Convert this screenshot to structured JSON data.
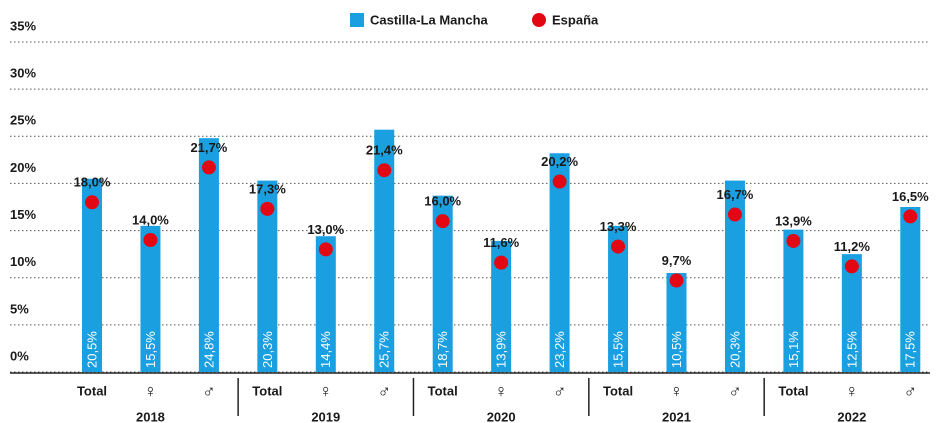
{
  "chart_data": {
    "type": "bar",
    "categories": [
      "Total",
      "♀",
      "♂",
      "Total",
      "♀",
      "♂",
      "Total",
      "♀",
      "♂",
      "Total",
      "♀",
      "♂",
      "Total",
      "♀",
      "♂"
    ],
    "group_labels": [
      "2018",
      "2019",
      "2020",
      "2021",
      "2022"
    ],
    "series": [
      {
        "name": "Castilla-La Mancha",
        "color": "#1a9fe0",
        "kind": "bar",
        "values": [
          20.5,
          15.5,
          24.8,
          20.3,
          14.4,
          25.7,
          18.7,
          13.9,
          23.2,
          15.5,
          10.5,
          20.3,
          15.1,
          12.5,
          17.5
        ],
        "value_labels": [
          "20,5%",
          "15,5%",
          "24,8%",
          "20,3%",
          "14,4%",
          "25,7%",
          "18,7%",
          "13,9%",
          "23,2%",
          "15,5%",
          "10,5%",
          "20,3%",
          "15,1%",
          "12,5%",
          "17,5%"
        ]
      },
      {
        "name": "España",
        "color": "#e30613",
        "kind": "dot",
        "values": [
          18.0,
          14.0,
          21.7,
          17.3,
          13.0,
          21.4,
          16.0,
          11.6,
          20.2,
          13.3,
          9.7,
          16.7,
          13.9,
          11.2,
          16.5
        ],
        "value_labels": [
          "18,0%",
          "14,0%",
          "21,7%",
          "17,3%",
          "13,0%",
          "21,4%",
          "16,0%",
          "11,6%",
          "20,2%",
          "13,3%",
          "9,7%",
          "16,7%",
          "13,9%",
          "11,2%",
          "16,5%"
        ]
      }
    ],
    "ylim": [
      0,
      35
    ],
    "yticks": [
      {
        "value": 0,
        "label": "0%"
      },
      {
        "value": 5,
        "label": "5%"
      },
      {
        "value": 10,
        "label": "10%"
      },
      {
        "value": 15,
        "label": "15%"
      },
      {
        "value": 20,
        "label": "20%"
      },
      {
        "value": 25,
        "label": "25%"
      },
      {
        "value": 30,
        "label": "30%"
      },
      {
        "value": 35,
        "label": "35%"
      }
    ],
    "grid": true
  }
}
